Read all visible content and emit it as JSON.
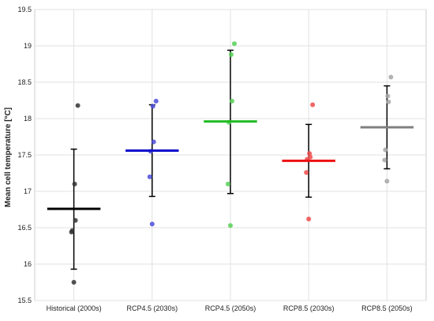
{
  "chart_data": {
    "type": "scatter",
    "title": "",
    "xlabel": "",
    "ylabel": "Mean cell temperature [°C]",
    "ylim": [
      15.5,
      19.5
    ],
    "yticks": [
      "15.5",
      "16",
      "16.5",
      "17",
      "17.5",
      "18",
      "18.5",
      "19",
      "19.5"
    ],
    "grid": true,
    "categories": [
      "Historical (2000s)",
      "RCP4.5 (2030s)",
      "RCP4.5 (2050s)",
      "RCP8.5 (2030s)",
      "RCP8.5 (2050s)"
    ],
    "series": [
      {
        "color": "#000000",
        "point_color": "#333333",
        "points": [
          18.18,
          17.1,
          16.6,
          16.46,
          16.44,
          15.75
        ],
        "mean": 16.76,
        "error_low": 15.93,
        "error_high": 17.58
      },
      {
        "color": "#1010cc",
        "point_color": "#4b4bdc",
        "points": [
          18.24,
          18.17,
          17.68,
          17.55,
          17.2,
          16.55
        ],
        "mean": 17.56,
        "error_low": 16.93,
        "error_high": 18.19
      },
      {
        "color": "#22bb22",
        "point_color": "#55d055",
        "points": [
          19.03,
          18.88,
          18.24,
          17.95,
          17.1,
          16.53
        ],
        "mean": 17.96,
        "error_low": 16.97,
        "error_high": 18.94
      },
      {
        "color": "#ee1111",
        "point_color": "#ef4a4a",
        "points": [
          18.19,
          17.52,
          17.47,
          17.44,
          17.26,
          16.62
        ],
        "mean": 17.42,
        "error_low": 16.92,
        "error_high": 17.92
      },
      {
        "color": "#808080",
        "point_color": "#a6a6a6",
        "points": [
          18.57,
          18.31,
          18.23,
          17.57,
          17.43,
          17.14
        ],
        "mean": 17.88,
        "error_low": 17.31,
        "error_high": 18.45
      }
    ]
  }
}
